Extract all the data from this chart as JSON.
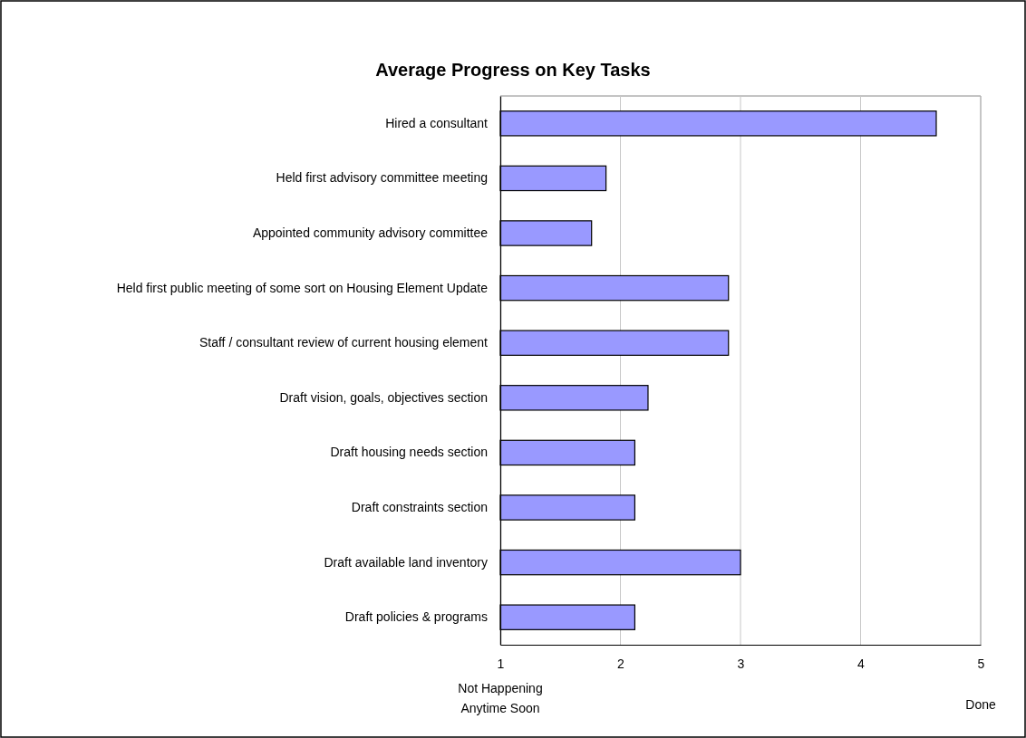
{
  "chart_data": {
    "type": "bar",
    "orientation": "horizontal",
    "title": "Average Progress on Key Tasks",
    "categories": [
      "Hired a consultant",
      "Held first advisory committee meeting",
      "Appointed community advisory committee",
      "Held first public meeting of some sort on Housing Element Update",
      "Staff / consultant review of current housing element",
      "Draft vision, goals, objectives section",
      "Draft housing needs section",
      "Draft constraints section",
      "Draft available land inventory",
      "Draft policies & programs"
    ],
    "values": [
      4.63,
      1.88,
      1.76,
      2.9,
      2.9,
      2.23,
      2.12,
      2.12,
      3.0,
      2.12
    ],
    "color": "#9999ff",
    "xlim": [
      1,
      5
    ],
    "xticks": [
      1,
      2,
      3,
      4,
      5
    ],
    "grid": "x",
    "annotations": [
      "Not Happening\nAnytime Soon",
      "Done"
    ]
  }
}
